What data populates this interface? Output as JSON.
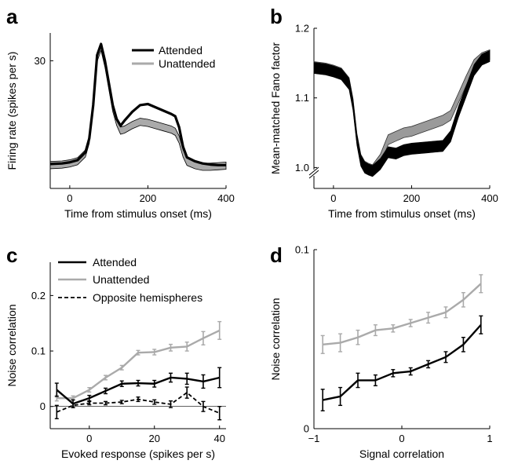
{
  "colors": {
    "attended": "#000000",
    "unattended": "#aaaaaa",
    "opposite": "#000000",
    "band_fill": "#9a9a9a"
  },
  "chart_data": [
    {
      "panel": "a",
      "type": "line",
      "xlabel": "Time from stimulus onset (ms)",
      "ylabel": "Firing rate (spikes per s)",
      "xlim": [
        -50,
        400
      ],
      "ylim": [
        7,
        35
      ],
      "xticks": [
        0,
        200,
        400
      ],
      "yticks": [
        30
      ],
      "legend": "top-right",
      "legend_entries": [
        "Attended",
        "Unattended"
      ],
      "series": [
        {
          "name": "Attended",
          "style": "band-dark",
          "x": [
            -50,
            -20,
            0,
            20,
            40,
            50,
            60,
            70,
            80,
            90,
            100,
            110,
            120,
            130,
            140,
            160,
            180,
            200,
            220,
            240,
            260,
            270,
            280,
            290,
            300,
            320,
            340,
            360,
            380,
            400
          ],
          "y": [
            11.4,
            11.5,
            11.7,
            12.1,
            13.5,
            16,
            22,
            31,
            33,
            30,
            26,
            22,
            19.5,
            18.3,
            19.2,
            20.8,
            22,
            22.2,
            21.6,
            21,
            20.4,
            20,
            18,
            14.5,
            12.6,
            11.9,
            11.5,
            11.3,
            11.2,
            11.2
          ]
        },
        {
          "name": "Unattended",
          "style": "band-light",
          "x": [
            -50,
            -20,
            0,
            20,
            40,
            50,
            60,
            70,
            80,
            90,
            100,
            110,
            120,
            130,
            140,
            160,
            180,
            200,
            220,
            240,
            260,
            270,
            280,
            290,
            300,
            320,
            340,
            360,
            380,
            400
          ],
          "y": [
            11.2,
            11.3,
            11.5,
            11.9,
            13.3,
            15.8,
            21.8,
            30.5,
            32.5,
            29.5,
            25.5,
            21.5,
            19,
            17.4,
            17.6,
            18.4,
            19,
            18.8,
            18.4,
            18,
            17.6,
            17.2,
            15.8,
            13.3,
            11.8,
            11.2,
            10.9,
            10.9,
            11,
            11.1
          ]
        }
      ]
    },
    {
      "panel": "b",
      "type": "line",
      "xlabel": "Time from stimulus onset (ms)",
      "ylabel": "Mean-matched Fano factor",
      "xlim": [
        -50,
        400
      ],
      "ylim": [
        0.97,
        1.2
      ],
      "xticks": [
        0,
        200,
        400
      ],
      "yticks": [
        1.0,
        1.1,
        1.2
      ],
      "ytick_labels": [
        "1.0",
        "1.1",
        "1.2"
      ],
      "axis_break": true,
      "series": [
        {
          "name": "Attended",
          "style": "band-dark",
          "x": [
            -50,
            -20,
            0,
            20,
            40,
            50,
            60,
            70,
            80,
            90,
            100,
            120,
            140,
            160,
            180,
            200,
            220,
            240,
            260,
            280,
            300,
            320,
            340,
            360,
            380,
            400
          ],
          "y": [
            1.143,
            1.141,
            1.138,
            1.134,
            1.12,
            1.09,
            1.04,
            1.01,
            1.0,
            0.997,
            0.995,
            1.005,
            1.022,
            1.02,
            1.025,
            1.027,
            1.028,
            1.029,
            1.03,
            1.031,
            1.045,
            1.08,
            1.11,
            1.14,
            1.155,
            1.16
          ]
        },
        {
          "name": "Unattended",
          "style": "band-light",
          "x": [
            -50,
            -20,
            0,
            20,
            40,
            50,
            60,
            70,
            80,
            90,
            100,
            120,
            140,
            160,
            180,
            200,
            220,
            240,
            260,
            280,
            300,
            320,
            340,
            360,
            380,
            400
          ],
          "y": [
            1.145,
            1.143,
            1.14,
            1.136,
            1.122,
            1.092,
            1.042,
            1.012,
            1.002,
            0.999,
            0.997,
            1.012,
            1.04,
            1.045,
            1.05,
            1.052,
            1.056,
            1.06,
            1.064,
            1.068,
            1.075,
            1.1,
            1.125,
            1.148,
            1.158,
            1.162
          ]
        }
      ]
    },
    {
      "panel": "c",
      "type": "line",
      "xlabel": "Evoked response (spikes per s)",
      "ylabel": "Noise correlation",
      "xlim": [
        -12,
        42
      ],
      "ylim": [
        -0.04,
        0.26
      ],
      "xticks": [
        0,
        20,
        40
      ],
      "yticks": [
        0,
        0.1,
        0.2
      ],
      "ytick_labels": [
        "0",
        "0.1",
        "0.2"
      ],
      "legend": "top-left",
      "legend_entries": [
        "Attended",
        "Unattended",
        "Opposite hemispheres"
      ],
      "series": [
        {
          "name": "Attended",
          "style": "solid-dark",
          "x": [
            -10,
            -5,
            0,
            5,
            10,
            15,
            20,
            25,
            30,
            35,
            40
          ],
          "y": [
            0.03,
            0.005,
            0.015,
            0.028,
            0.041,
            0.042,
            0.041,
            0.052,
            0.05,
            0.045,
            0.052
          ],
          "err": [
            0.012,
            0.007,
            0.005,
            0.005,
            0.005,
            0.005,
            0.006,
            0.008,
            0.01,
            0.012,
            0.018
          ]
        },
        {
          "name": "Unattended",
          "style": "solid-light",
          "x": [
            -10,
            -5,
            0,
            5,
            10,
            15,
            20,
            25,
            30,
            35,
            40
          ],
          "y": [
            0.015,
            0.015,
            0.03,
            0.052,
            0.07,
            0.097,
            0.098,
            0.106,
            0.108,
            0.123,
            0.137
          ],
          "err": [
            0.005,
            0.004,
            0.004,
            0.004,
            0.004,
            0.004,
            0.005,
            0.006,
            0.008,
            0.012,
            0.016
          ]
        },
        {
          "name": "Opposite hemispheres",
          "style": "dashed",
          "x": [
            -10,
            -5,
            0,
            5,
            10,
            15,
            20,
            25,
            30,
            35,
            40
          ],
          "y": [
            -0.01,
            0.002,
            0.006,
            0.006,
            0.008,
            0.013,
            0.008,
            0.004,
            0.025,
            0.0,
            -0.012
          ],
          "err": [
            0.012,
            0.004,
            0.003,
            0.003,
            0.003,
            0.004,
            0.004,
            0.006,
            0.01,
            0.009,
            0.012
          ]
        }
      ]
    },
    {
      "panel": "d",
      "type": "line",
      "xlabel": "Signal correlation",
      "ylabel": "Noise correlation",
      "xlim": [
        -1,
        1
      ],
      "ylim": [
        0,
        0.1
      ],
      "xticks": [
        -1,
        0,
        1
      ],
      "yticks": [
        0,
        0.1
      ],
      "ytick_labels": [
        "0",
        "0.1"
      ],
      "series": [
        {
          "name": "Attended",
          "style": "solid-dark",
          "x": [
            -0.9,
            -0.7,
            -0.5,
            -0.3,
            -0.1,
            0.1,
            0.3,
            0.5,
            0.7,
            0.9
          ],
          "y": [
            0.016,
            0.018,
            0.027,
            0.027,
            0.031,
            0.032,
            0.036,
            0.04,
            0.047,
            0.058
          ],
          "err": [
            0.006,
            0.005,
            0.004,
            0.003,
            0.002,
            0.002,
            0.002,
            0.003,
            0.004,
            0.005
          ]
        },
        {
          "name": "Unattended",
          "style": "solid-light",
          "x": [
            -0.9,
            -0.7,
            -0.5,
            -0.3,
            -0.1,
            0.1,
            0.3,
            0.5,
            0.7,
            0.9
          ],
          "y": [
            0.047,
            0.048,
            0.051,
            0.055,
            0.056,
            0.059,
            0.062,
            0.065,
            0.072,
            0.081
          ],
          "err": [
            0.005,
            0.005,
            0.004,
            0.003,
            0.002,
            0.002,
            0.003,
            0.003,
            0.004,
            0.005
          ]
        }
      ]
    }
  ],
  "panels": {
    "a": {
      "letter": "a"
    },
    "b": {
      "letter": "b"
    },
    "c": {
      "letter": "c"
    },
    "d": {
      "letter": "d"
    }
  }
}
